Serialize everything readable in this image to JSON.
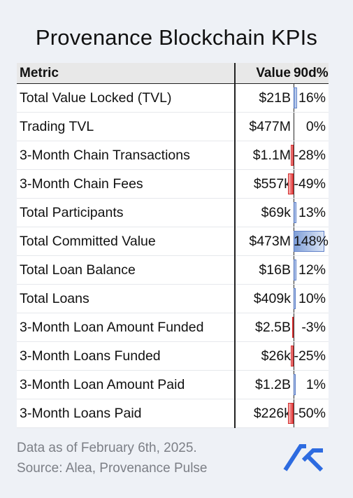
{
  "title": "Provenance Blockchain KPIs",
  "table": {
    "headers": {
      "metric": "Metric",
      "value": "Value",
      "change": "90d%"
    },
    "rows": [
      {
        "metric": "Total Value Locked (TVL)",
        "value": "$21B",
        "change": "16%",
        "change_pct": 16
      },
      {
        "metric": "Trading TVL",
        "value": "$477M",
        "change": "0%",
        "change_pct": 0
      },
      {
        "metric": "3-Month Chain Transactions",
        "value": "$1.1M",
        "change": "-28%",
        "change_pct": -28
      },
      {
        "metric": "3-Month Chain Fees",
        "value": "$557k",
        "change": "-49%",
        "change_pct": -49
      },
      {
        "metric": "Total Participants",
        "value": "$69k",
        "change": "13%",
        "change_pct": 13
      },
      {
        "metric": "Total Committed Value",
        "value": "$473M",
        "change": "148%",
        "change_pct": 148
      },
      {
        "metric": "Total Loan Balance",
        "value": "$16B",
        "change": "12%",
        "change_pct": 12
      },
      {
        "metric": "Total Loans",
        "value": "$409k",
        "change": "10%",
        "change_pct": 10
      },
      {
        "metric": "3-Month Loan Amount Funded",
        "value": "$2.5B",
        "change": "-3%",
        "change_pct": -3
      },
      {
        "metric": "3-Month Loans Funded",
        "value": "$26k",
        "change": "-25%",
        "change_pct": -25
      },
      {
        "metric": "3-Month Loan Amount Paid",
        "value": "$1.2B",
        "change": "1%",
        "change_pct": 1
      },
      {
        "metric": "3-Month Loans Paid",
        "value": "$226k",
        "change": "-50%",
        "change_pct": -50
      }
    ]
  },
  "footer": {
    "line1": "Data as of February 6th, 2025.",
    "line2": "Source: Alea, Provenance Pulse"
  },
  "logo_icon": "alea-logo-icon",
  "colors": {
    "positive_bar": "#7f9fd8",
    "negative_bar": "#e23a3a",
    "background": "#eef1f6"
  }
}
